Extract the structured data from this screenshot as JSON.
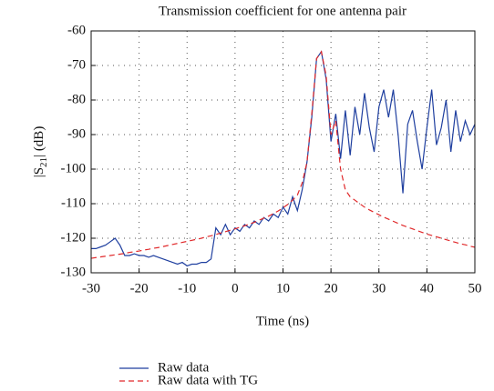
{
  "chart_data": {
    "type": "line",
    "title": "Transmission coefficient for one antenna pair",
    "xlabel": "Time (ns)",
    "ylabel": {
      "prefix": "|S",
      "subscript": "21",
      "suffix": "| (dB)"
    },
    "x": [
      -30,
      -29,
      -28,
      -27,
      -26,
      -25,
      -24,
      -23,
      -22,
      -21,
      -20,
      -19,
      -18,
      -17,
      -16,
      -15,
      -14,
      -13,
      -12,
      -11,
      -10,
      -9,
      -8,
      -7,
      -6,
      -5,
      -4,
      -3,
      -2,
      -1,
      0,
      1,
      2,
      3,
      4,
      5,
      6,
      7,
      8,
      9,
      10,
      11,
      12,
      13,
      14,
      15,
      16,
      17,
      18,
      19,
      20,
      21,
      22,
      23,
      24,
      25,
      26,
      27,
      28,
      29,
      30,
      31,
      32,
      33,
      34,
      35,
      36,
      37,
      38,
      39,
      40,
      41,
      42,
      43,
      44,
      45,
      46,
      47,
      48,
      49,
      50
    ],
    "series": [
      {
        "name": "Raw data",
        "color": "#1f3f9f",
        "linestyle": "solid",
        "values": [
          -123,
          -123,
          -122.5,
          -122,
          -121,
          -120,
          -122,
          -125,
          -125,
          -124.5,
          -125,
          -125,
          -125.5,
          -125,
          -125.5,
          -126,
          -126.5,
          -127,
          -127.5,
          -127,
          -128,
          -127.5,
          -127.5,
          -127,
          -127,
          -126,
          -117,
          -119,
          -116,
          -119,
          -117,
          -118,
          -116,
          -117,
          -115,
          -116,
          -114,
          -115,
          -113,
          -114,
          -111,
          -113,
          -108,
          -112,
          -106,
          -98,
          -85,
          -68,
          -66,
          -74,
          -92,
          -84,
          -97,
          -83,
          -96,
          -82,
          -90,
          -78,
          -88,
          -95,
          -82,
          -77,
          -85,
          -77,
          -90,
          -107,
          -87,
          -83,
          -92,
          -100,
          -88,
          -77,
          -93,
          -88,
          -80,
          -95,
          -83,
          -92,
          -86,
          -90,
          -87
        ]
      },
      {
        "name": "Raw data with TG",
        "color": "#e0282a",
        "linestyle": "dashed",
        "values": [
          -125.8,
          -125.6,
          -125.4,
          -125.2,
          -125,
          -124.8,
          -124.6,
          -124.4,
          -124.1,
          -123.9,
          -123.7,
          -123.4,
          -123.2,
          -122.9,
          -122.7,
          -122.4,
          -122.1,
          -121.8,
          -121.5,
          -121.2,
          -120.9,
          -120.6,
          -120.3,
          -120,
          -119.6,
          -119.3,
          -118.9,
          -118.5,
          -118.1,
          -117.7,
          -117.3,
          -116.8,
          -116.4,
          -115.9,
          -115.4,
          -114.8,
          -114.2,
          -113.6,
          -112.9,
          -112.1,
          -111.2,
          -110.2,
          -109,
          -107.5,
          -104,
          -98,
          -84,
          -68,
          -66,
          -73,
          -90,
          -86,
          -100,
          -106,
          -108,
          -109,
          -110,
          -111,
          -111.8,
          -112.5,
          -113.2,
          -113.9,
          -114.5,
          -115.1,
          -115.7,
          -116.3,
          -116.8,
          -117.3,
          -117.8,
          -118.3,
          -118.8,
          -119.2,
          -119.6,
          -120,
          -120.4,
          -120.8,
          -121.2,
          -121.6,
          -121.9,
          -122.3,
          -122.6
        ]
      }
    ],
    "xlim": [
      -30,
      50
    ],
    "xticks": [
      -30,
      -20,
      -10,
      0,
      10,
      20,
      30,
      40,
      50
    ],
    "ylim": [
      -130,
      -60
    ],
    "yticks": [
      -130,
      -120,
      -110,
      -100,
      -90,
      -80,
      -70,
      -60
    ],
    "grid": true,
    "legend": "bottom-left"
  }
}
